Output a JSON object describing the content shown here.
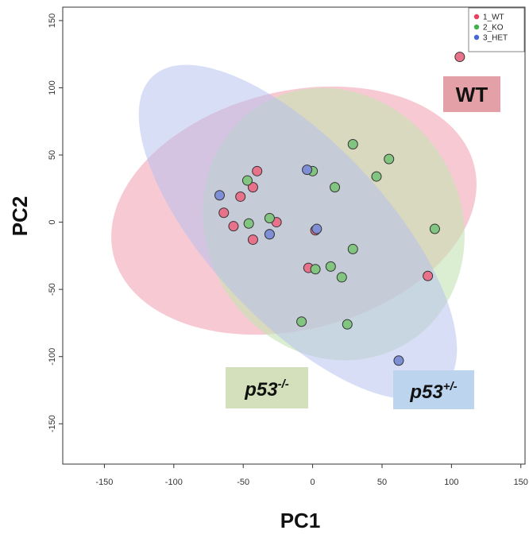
{
  "chart_data": {
    "type": "scatter",
    "title": "",
    "xlabel": "PC1",
    "ylabel": "PC2",
    "xlim": [
      -180,
      153
    ],
    "ylim": [
      -180,
      160
    ],
    "xticks": [
      -150,
      -100,
      -50,
      0,
      50,
      100,
      150
    ],
    "yticks": [
      -150,
      -100,
      -50,
      0,
      50,
      100,
      150
    ],
    "xtick_labels": [
      "-150",
      "-100",
      "-50",
      "0",
      "50",
      "100",
      "150"
    ],
    "ytick_labels": [
      "-150",
      "-100",
      "-50",
      "0",
      "50",
      "100",
      "150"
    ],
    "grid": false,
    "legend_position": "top-right",
    "legend": [
      {
        "label": "1_WT",
        "color": "#e8405e"
      },
      {
        "label": "2_KO",
        "color": "#3fb24a"
      },
      {
        "label": "3_HET",
        "color": "#4866d6"
      }
    ],
    "series": [
      {
        "name": "1_WT",
        "color": "#e8728a",
        "ellipse_color": "#f2a6b6",
        "points": [
          {
            "x": 106,
            "y": 123
          },
          {
            "x": -40,
            "y": 38
          },
          {
            "x": -43,
            "y": 26
          },
          {
            "x": -52,
            "y": 19
          },
          {
            "x": -64,
            "y": 7
          },
          {
            "x": -57,
            "y": -3
          },
          {
            "x": -26,
            "y": 0
          },
          {
            "x": -43,
            "y": -13
          },
          {
            "x": -31,
            "y": -9
          },
          {
            "x": 2,
            "y": -6
          },
          {
            "x": -3,
            "y": -34
          },
          {
            "x": 83,
            "y": -40
          }
        ]
      },
      {
        "name": "2_KO",
        "color": "#82c580",
        "ellipse_color": "#c4e3b4",
        "points": [
          {
            "x": 29,
            "y": 58
          },
          {
            "x": 55,
            "y": 47
          },
          {
            "x": 46,
            "y": 34
          },
          {
            "x": 0,
            "y": 38
          },
          {
            "x": -47,
            "y": 31
          },
          {
            "x": 16,
            "y": 26
          },
          {
            "x": -31,
            "y": 3
          },
          {
            "x": -46,
            "y": -1
          },
          {
            "x": 88,
            "y": -5
          },
          {
            "x": 29,
            "y": -20
          },
          {
            "x": 13,
            "y": -33
          },
          {
            "x": 2,
            "y": -35
          },
          {
            "x": 21,
            "y": -41
          },
          {
            "x": -8,
            "y": -74
          },
          {
            "x": 25,
            "y": -76
          }
        ]
      },
      {
        "name": "3_HET",
        "color": "#7f8fd6",
        "ellipse_color": "#b3bdf0",
        "points": [
          {
            "x": -67,
            "y": 20
          },
          {
            "x": -4,
            "y": 39
          },
          {
            "x": 3,
            "y": -5
          },
          {
            "x": -31,
            "y": -9
          },
          {
            "x": 62,
            "y": -103
          }
        ]
      }
    ],
    "annotations": [
      {
        "text": "WT",
        "color": "#e3a0a6"
      },
      {
        "text": "p53",
        "superscript": "-/-",
        "color": "#d3e0bb"
      },
      {
        "text": "p53",
        "superscript": "+/-",
        "color": "#bdd4ef"
      }
    ]
  }
}
